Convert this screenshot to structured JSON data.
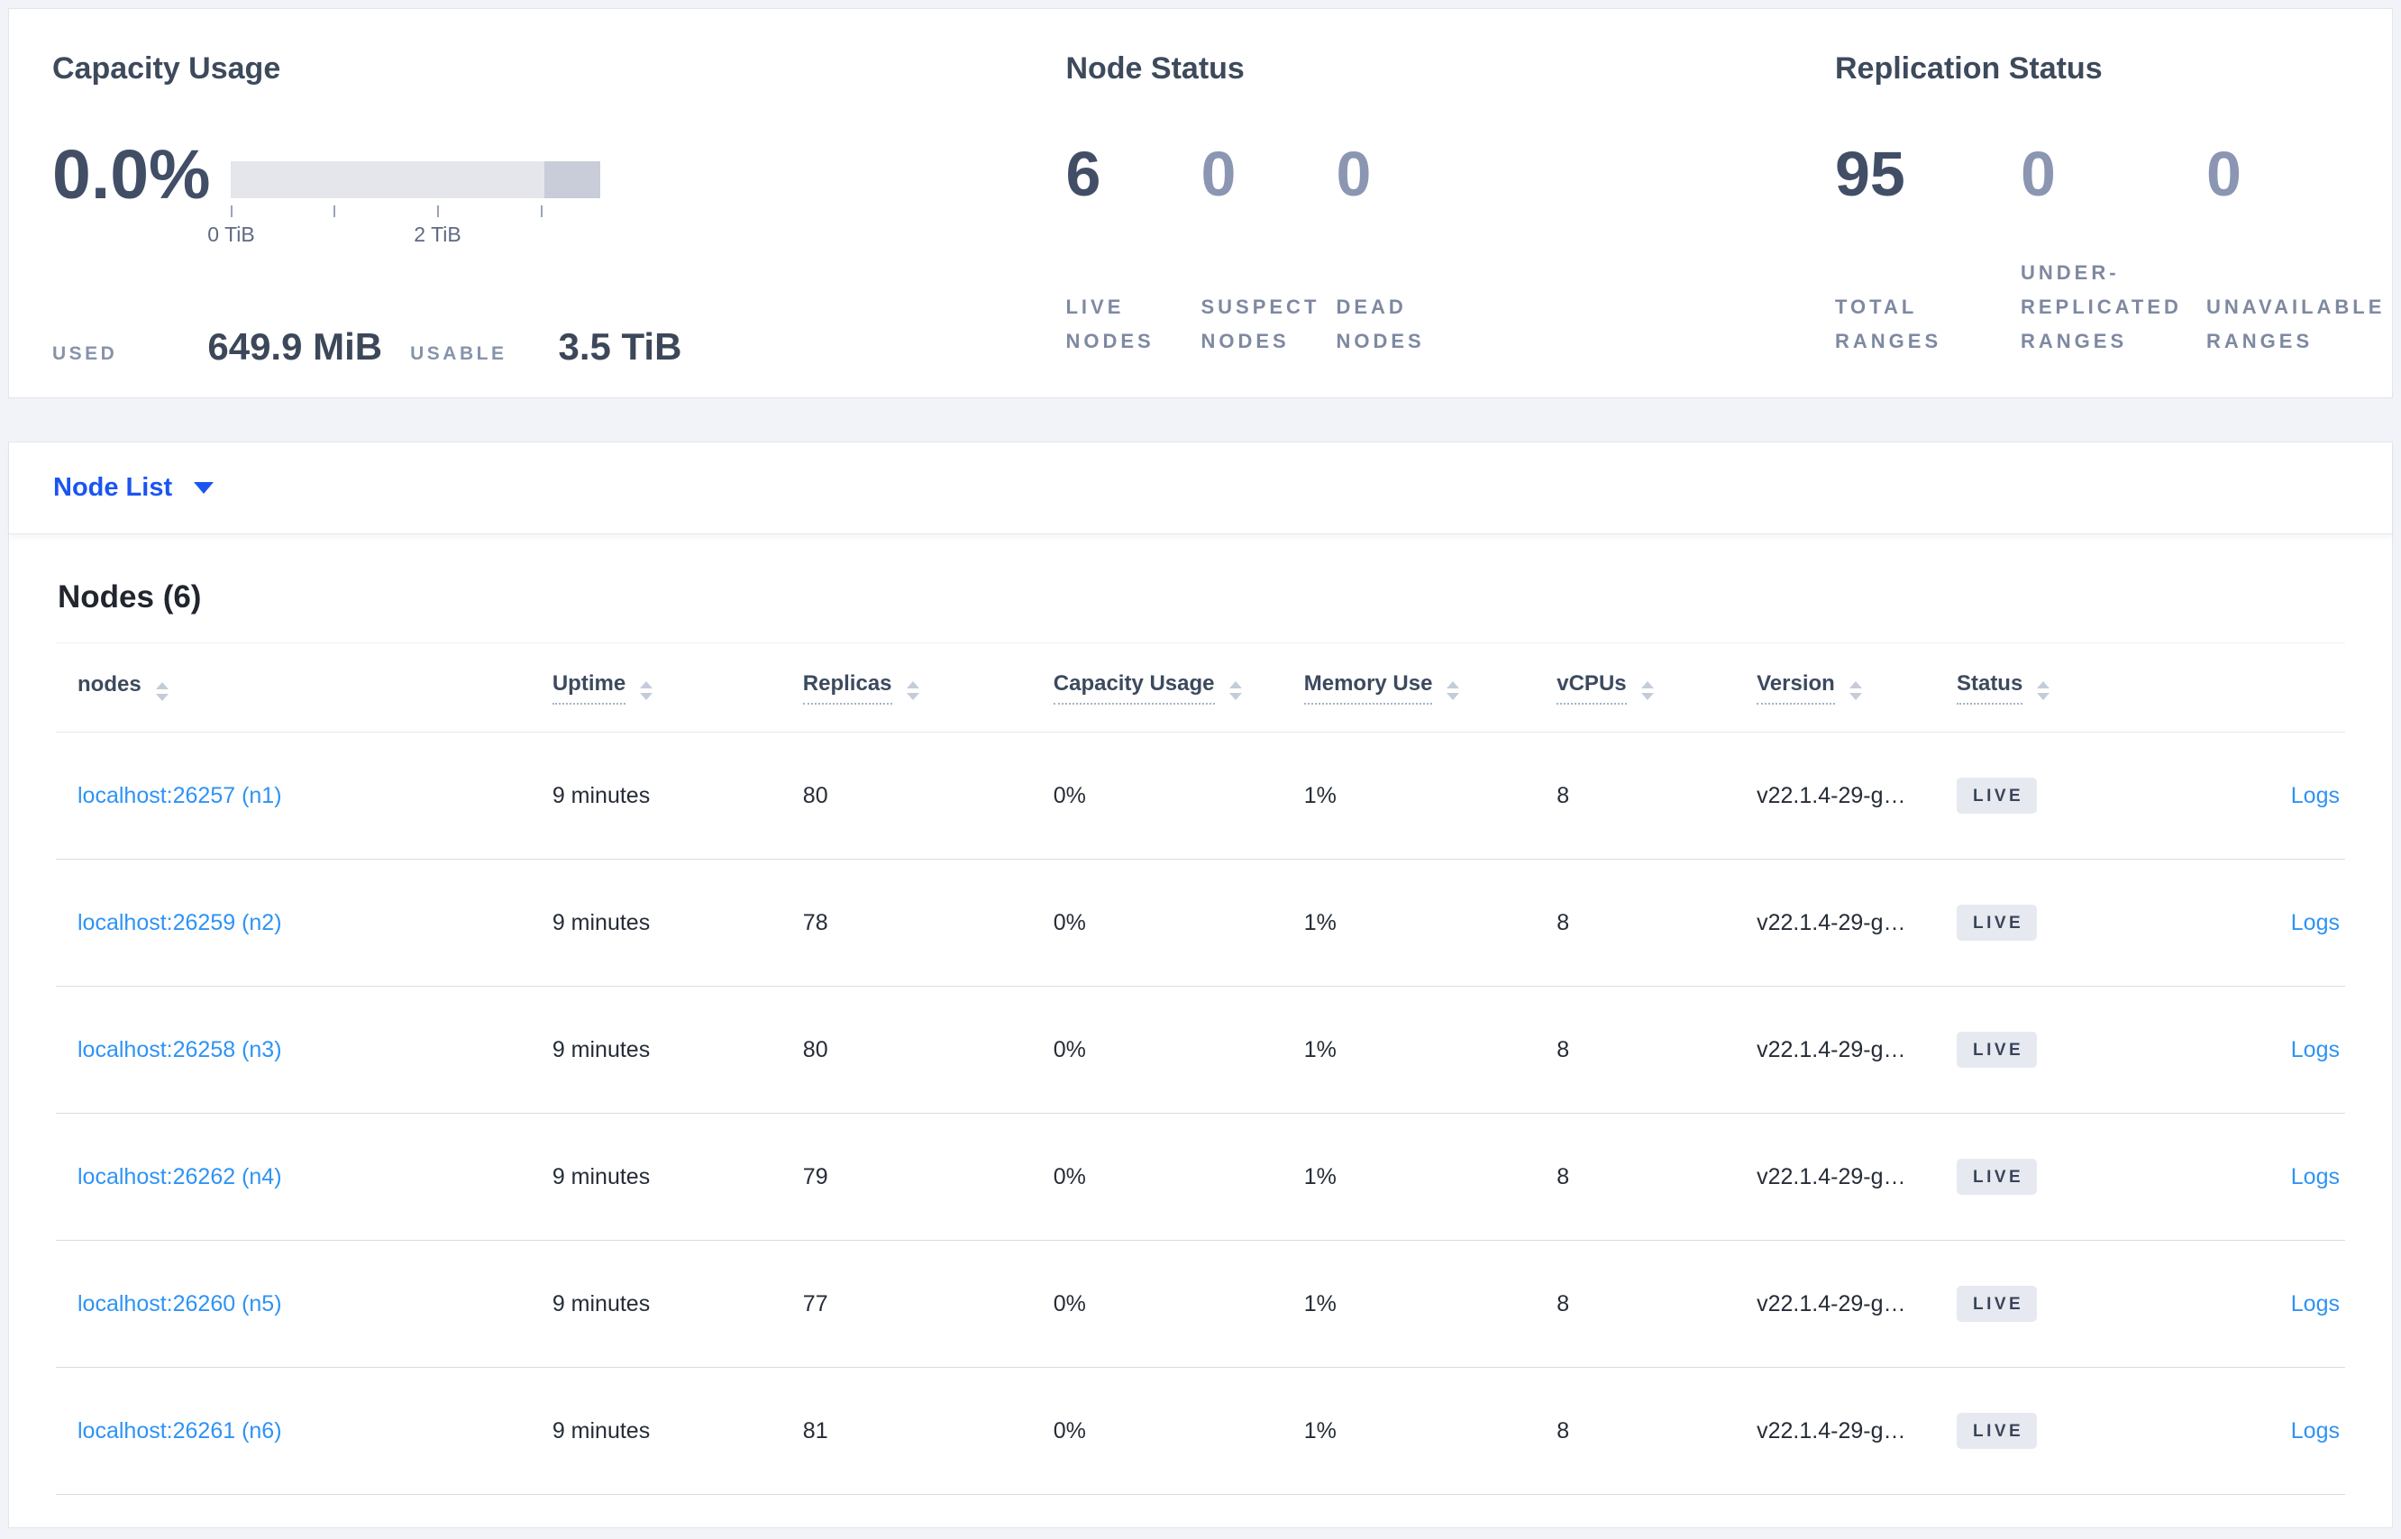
{
  "colors": {
    "page_bg": "#f1f3f8",
    "accent_blue": "#1a55f0",
    "link_blue": "#2e93f4",
    "badge_bg": "#e6e9f0",
    "text_dark": "#3e4a5e",
    "text_muted": "#8b96b3",
    "bar_light": "#e4e6ec",
    "bar_dark": "#c9cdd9"
  },
  "panels": {
    "capacity": {
      "title": "Capacity Usage",
      "percent": "0.0%",
      "tick_labels": {
        "t0": "0 TiB",
        "t2": "2 TiB"
      },
      "used_label": "USED",
      "used_value": "649.9 MiB",
      "usable_label": "USABLE",
      "usable_value": "3.5 TiB"
    },
    "node_status": {
      "title": "Node Status",
      "stats": [
        {
          "value": "6",
          "label": "LIVE NODES",
          "emphasis": true
        },
        {
          "value": "0",
          "label": "SUSPECT NODES",
          "emphasis": false
        },
        {
          "value": "0",
          "label": "DEAD NODES",
          "emphasis": false
        }
      ]
    },
    "replication": {
      "title": "Replication Status",
      "stats": [
        {
          "value": "95",
          "label": "TOTAL RANGES",
          "emphasis": true
        },
        {
          "value": "0",
          "label": "UNDER-REPLICATED RANGES",
          "emphasis": false
        },
        {
          "value": "0",
          "label": "UNAVAILABLE RANGES",
          "emphasis": false
        }
      ]
    }
  },
  "view_selector": {
    "label": "Node List"
  },
  "table": {
    "title": "Nodes (6)",
    "columns": [
      {
        "key": "node",
        "label": "nodes",
        "underline": false,
        "cls": "col-nodes"
      },
      {
        "key": "uptime",
        "label": "Uptime",
        "underline": true,
        "cls": "col-uptime"
      },
      {
        "key": "replicas",
        "label": "Replicas",
        "underline": true,
        "cls": "col-replicas"
      },
      {
        "key": "capacity",
        "label": "Capacity Usage",
        "underline": true,
        "cls": "col-capacity"
      },
      {
        "key": "memory",
        "label": "Memory Use",
        "underline": true,
        "cls": "col-memory"
      },
      {
        "key": "vcpus",
        "label": "vCPUs",
        "underline": true,
        "cls": "col-vcpus"
      },
      {
        "key": "version",
        "label": "Version",
        "underline": true,
        "cls": "col-version"
      },
      {
        "key": "status",
        "label": "Status",
        "underline": true,
        "cls": "col-status"
      },
      {
        "key": "logs",
        "label": "",
        "underline": false,
        "cls": "col-logs"
      }
    ],
    "rows": [
      {
        "node": "localhost:26257 (n1)",
        "uptime": "9 minutes",
        "replicas": "80",
        "capacity": "0%",
        "memory": "1%",
        "vcpus": "8",
        "version": "v22.1.4-29-g…",
        "status": "LIVE",
        "logs": "Logs"
      },
      {
        "node": "localhost:26259 (n2)",
        "uptime": "9 minutes",
        "replicas": "78",
        "capacity": "0%",
        "memory": "1%",
        "vcpus": "8",
        "version": "v22.1.4-29-g…",
        "status": "LIVE",
        "logs": "Logs"
      },
      {
        "node": "localhost:26258 (n3)",
        "uptime": "9 minutes",
        "replicas": "80",
        "capacity": "0%",
        "memory": "1%",
        "vcpus": "8",
        "version": "v22.1.4-29-g…",
        "status": "LIVE",
        "logs": "Logs"
      },
      {
        "node": "localhost:26262 (n4)",
        "uptime": "9 minutes",
        "replicas": "79",
        "capacity": "0%",
        "memory": "1%",
        "vcpus": "8",
        "version": "v22.1.4-29-g…",
        "status": "LIVE",
        "logs": "Logs"
      },
      {
        "node": "localhost:26260 (n5)",
        "uptime": "9 minutes",
        "replicas": "77",
        "capacity": "0%",
        "memory": "1%",
        "vcpus": "8",
        "version": "v22.1.4-29-g…",
        "status": "LIVE",
        "logs": "Logs"
      },
      {
        "node": "localhost:26261 (n6)",
        "uptime": "9 minutes",
        "replicas": "81",
        "capacity": "0%",
        "memory": "1%",
        "vcpus": "8",
        "version": "v22.1.4-29-g…",
        "status": "LIVE",
        "logs": "Logs"
      }
    ]
  }
}
